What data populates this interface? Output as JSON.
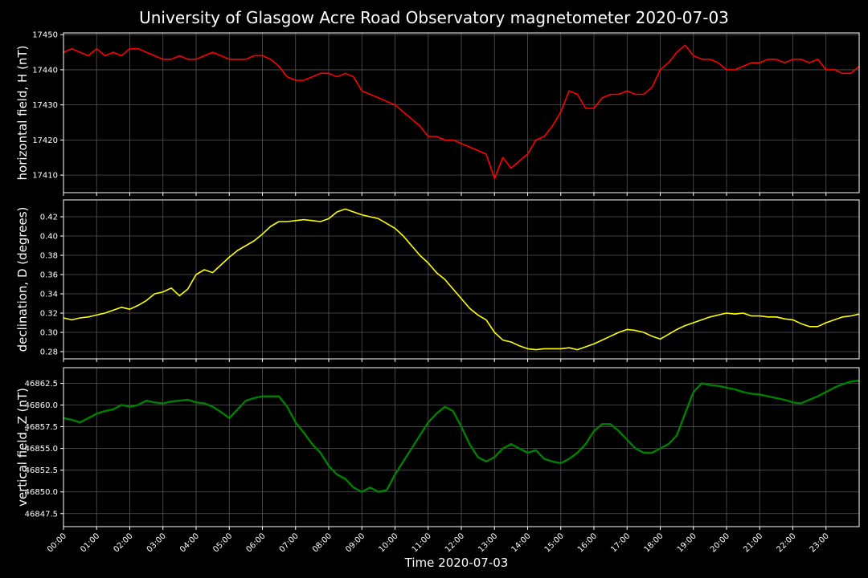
{
  "page": {
    "title": "University of Glasgow Acre Road Observatory magnetometer 2020-07-03"
  },
  "chart_data": [
    {
      "type": "line",
      "title": "",
      "ylabel": "horizontal field, H (nT)",
      "xlabel": "",
      "color": "#ff0000",
      "xlim": [
        0,
        24
      ],
      "ylim": [
        17405,
        17450.5
      ],
      "yticks": [
        17410,
        17420,
        17430,
        17440,
        17450
      ],
      "ytick_labels": [
        "17410",
        "17420",
        "17430",
        "17440",
        "17450"
      ],
      "grid": true,
      "series": [
        {
          "x": [
            0,
            0.25,
            0.5,
            0.75,
            1,
            1.25,
            1.5,
            1.75,
            2,
            2.25,
            2.5,
            2.75,
            3,
            3.25,
            3.5,
            3.75,
            4,
            4.25,
            4.5,
            4.75,
            5,
            5.25,
            5.5,
            5.75,
            6,
            6.25,
            6.5,
            6.75,
            7,
            7.25,
            7.5,
            7.75,
            8,
            8.25,
            8.5,
            8.75,
            9,
            9.25,
            9.5,
            9.75,
            10,
            10.25,
            10.5,
            10.75,
            11,
            11.25,
            11.5,
            11.75,
            12,
            12.25,
            12.5,
            12.75,
            13,
            13.25,
            13.5,
            13.75,
            14,
            14.25,
            14.5,
            14.75,
            15,
            15.25,
            15.5,
            15.75,
            16,
            16.25,
            16.5,
            16.75,
            17,
            17.25,
            17.5,
            17.75,
            18,
            18.25,
            18.5,
            18.75,
            19,
            19.25,
            19.5,
            19.75,
            20,
            20.25,
            20.5,
            20.75,
            21,
            21.25,
            21.5,
            21.75,
            22,
            22.25,
            22.5,
            22.75,
            23,
            23.25,
            23.5,
            23.75,
            24
          ],
          "values": [
            17445,
            17446,
            17445,
            17444,
            17446,
            17444,
            17445,
            17444,
            17446,
            17446,
            17445,
            17444,
            17443,
            17443,
            17444,
            17443,
            17443,
            17444,
            17445,
            17444,
            17443,
            17443,
            17443,
            17444,
            17444,
            17443,
            17441,
            17438,
            17437,
            17437,
            17438,
            17439,
            17439,
            17438,
            17439,
            17438,
            17434,
            17433,
            17432,
            17431,
            17430,
            17428,
            17426,
            17424,
            17421,
            17421,
            17420,
            17420,
            17419,
            17418,
            17417,
            17416,
            17409,
            17415,
            17412,
            17414,
            17416,
            17420,
            17421,
            17424,
            17428,
            17434,
            17433,
            17429,
            17429,
            17432,
            17433,
            17433,
            17434,
            17433,
            17433,
            17435,
            17440,
            17442,
            17445,
            17447,
            17444,
            17443,
            17443,
            17442,
            17440,
            17440,
            17441,
            17442,
            17442,
            17443,
            17443,
            17442,
            17443,
            17443,
            17442,
            17443,
            17440,
            17440,
            17439,
            17439,
            17441
          ]
        }
      ]
    },
    {
      "type": "line",
      "title": "",
      "ylabel": "declination, D (degrees)",
      "xlabel": "",
      "color": "#ffff00",
      "xlim": [
        0,
        24
      ],
      "ylim": [
        0.2725,
        0.4375
      ],
      "yticks": [
        0.28,
        0.3,
        0.32,
        0.34,
        0.36,
        0.38,
        0.4,
        0.42
      ],
      "ytick_labels": [
        "0.28",
        "0.30",
        "0.32",
        "0.34",
        "0.36",
        "0.38",
        "0.40",
        "0.42"
      ],
      "grid": true,
      "series": [
        {
          "x": [
            0,
            0.25,
            0.5,
            0.75,
            1,
            1.25,
            1.5,
            1.75,
            2,
            2.25,
            2.5,
            2.75,
            3,
            3.25,
            3.5,
            3.75,
            4,
            4.25,
            4.5,
            4.75,
            5,
            5.25,
            5.5,
            5.75,
            6,
            6.25,
            6.5,
            6.75,
            7,
            7.25,
            7.5,
            7.75,
            8,
            8.25,
            8.5,
            8.75,
            9,
            9.25,
            9.5,
            9.75,
            10,
            10.25,
            10.5,
            10.75,
            11,
            11.25,
            11.5,
            11.75,
            12,
            12.25,
            12.5,
            12.75,
            13,
            13.25,
            13.5,
            13.75,
            14,
            14.25,
            14.5,
            14.75,
            15,
            15.25,
            15.5,
            15.75,
            16,
            16.25,
            16.5,
            16.75,
            17,
            17.25,
            17.5,
            17.75,
            18,
            18.25,
            18.5,
            18.75,
            19,
            19.25,
            19.5,
            19.75,
            20,
            20.25,
            20.5,
            20.75,
            21,
            21.25,
            21.5,
            21.75,
            22,
            22.25,
            22.5,
            22.75,
            23,
            23.25,
            23.5,
            23.75,
            24
          ],
          "values": [
            0.315,
            0.313,
            0.315,
            0.316,
            0.318,
            0.32,
            0.323,
            0.326,
            0.324,
            0.328,
            0.333,
            0.34,
            0.342,
            0.346,
            0.338,
            0.345,
            0.36,
            0.365,
            0.362,
            0.37,
            0.378,
            0.385,
            0.39,
            0.395,
            0.402,
            0.41,
            0.415,
            0.415,
            0.416,
            0.417,
            0.416,
            0.415,
            0.418,
            0.425,
            0.428,
            0.425,
            0.422,
            0.42,
            0.418,
            0.413,
            0.408,
            0.4,
            0.39,
            0.38,
            0.372,
            0.362,
            0.355,
            0.345,
            0.335,
            0.325,
            0.318,
            0.313,
            0.3,
            0.292,
            0.29,
            0.286,
            0.283,
            0.282,
            0.283,
            0.283,
            0.283,
            0.284,
            0.282,
            0.285,
            0.288,
            0.292,
            0.296,
            0.3,
            0.303,
            0.302,
            0.3,
            0.296,
            0.293,
            0.298,
            0.303,
            0.307,
            0.31,
            0.313,
            0.316,
            0.318,
            0.32,
            0.319,
            0.32,
            0.317,
            0.317,
            0.316,
            0.316,
            0.314,
            0.313,
            0.309,
            0.306,
            0.306,
            0.31,
            0.313,
            0.316,
            0.317,
            0.319
          ]
        }
      ]
    },
    {
      "type": "line",
      "title": "",
      "ylabel": "vertical field, Z (nT)",
      "xlabel": "Time 2020-07-03",
      "color": "#008000",
      "xlim": [
        0,
        24
      ],
      "ylim": [
        46846,
        46864.3
      ],
      "yticks": [
        46847.5,
        46850.0,
        46852.5,
        46855.0,
        46857.5,
        46860.0,
        46862.5
      ],
      "ytick_labels": [
        "46847.5",
        "46850.0",
        "46852.5",
        "46855.0",
        "46857.5",
        "46860.0",
        "46862.5"
      ],
      "grid": true,
      "xtick_labels": [
        "00:00",
        "01:00",
        "02:00",
        "03:00",
        "04:00",
        "05:00",
        "06:00",
        "07:00",
        "08:00",
        "09:00",
        "10:00",
        "11:00",
        "12:00",
        "13:00",
        "14:00",
        "15:00",
        "16:00",
        "17:00",
        "18:00",
        "19:00",
        "20:00",
        "21:00",
        "22:00",
        "23:00"
      ],
      "series": [
        {
          "x": [
            0,
            0.25,
            0.5,
            0.75,
            1,
            1.25,
            1.5,
            1.75,
            2,
            2.25,
            2.5,
            2.75,
            3,
            3.25,
            3.5,
            3.75,
            4,
            4.25,
            4.5,
            4.75,
            5,
            5.25,
            5.5,
            5.75,
            6,
            6.25,
            6.5,
            6.75,
            7,
            7.25,
            7.5,
            7.75,
            8,
            8.25,
            8.5,
            8.75,
            9,
            9.25,
            9.5,
            9.75,
            10,
            10.25,
            10.5,
            10.75,
            11,
            11.25,
            11.5,
            11.75,
            12,
            12.25,
            12.5,
            12.75,
            13,
            13.25,
            13.5,
            13.75,
            14,
            14.25,
            14.5,
            14.75,
            15,
            15.25,
            15.5,
            15.75,
            16,
            16.25,
            16.5,
            16.75,
            17,
            17.25,
            17.5,
            17.75,
            18,
            18.25,
            18.5,
            18.75,
            19,
            19.25,
            19.5,
            19.75,
            20,
            20.25,
            20.5,
            20.75,
            21,
            21.25,
            21.5,
            21.75,
            22,
            22.25,
            22.5,
            22.75,
            23,
            23.25,
            23.5,
            23.75,
            24
          ],
          "values": [
            46858.5,
            46858.3,
            46858,
            46858.5,
            46859,
            46859.3,
            46859.5,
            46860,
            46859.8,
            46860,
            46860.5,
            46860.3,
            46860.2,
            46860.4,
            46860.5,
            46860.6,
            46860.3,
            46860.2,
            46859.8,
            46859.2,
            46858.5,
            46859.5,
            46860.5,
            46860.8,
            46861,
            46861,
            46861,
            46859.8,
            46858,
            46856.8,
            46855.5,
            46854.5,
            46853,
            46852,
            46851.5,
            46850.5,
            46850,
            46850.5,
            46850,
            46850.2,
            46852,
            46853.5,
            46855,
            46856.5,
            46858,
            46859,
            46859.8,
            46859.3,
            46857.5,
            46855.5,
            46854,
            46853.5,
            46854,
            46855,
            46855.5,
            46855,
            46854.5,
            46854.8,
            46853.8,
            46853.5,
            46853.3,
            46853.8,
            46854.5,
            46855.5,
            46857,
            46857.8,
            46857.8,
            46857,
            46856,
            46855,
            46854.5,
            46854.5,
            46855,
            46855.5,
            46856.5,
            46859,
            46861.5,
            46862.5,
            46862.3,
            46862.2,
            46862,
            46861.8,
            46861.5,
            46861.3,
            46861.2,
            46861,
            46860.8,
            46860.6,
            46860.3,
            46860.2,
            46860.6,
            46861,
            46861.5,
            46862,
            46862.4,
            46862.7,
            46862.8
          ]
        }
      ]
    }
  ]
}
